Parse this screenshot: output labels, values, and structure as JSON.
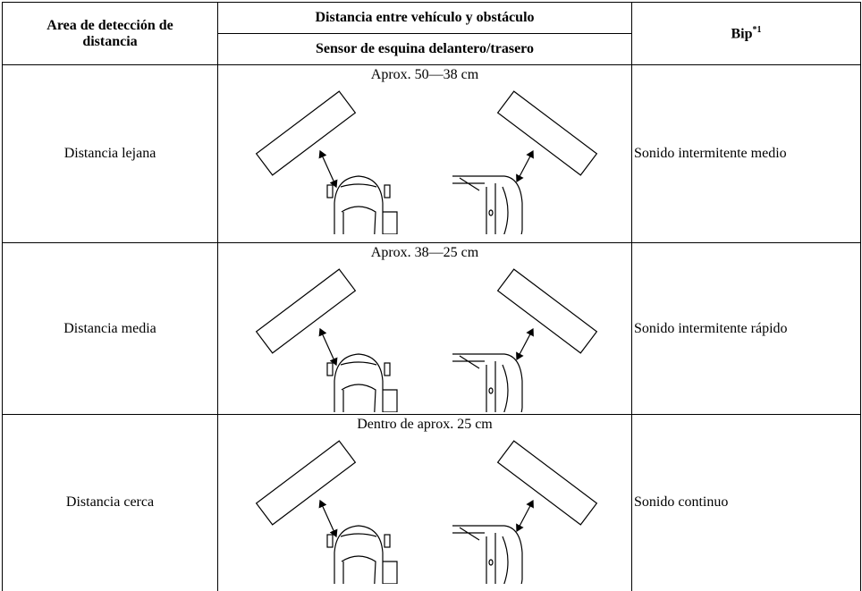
{
  "header": {
    "area_lines": [
      "Area de detección de",
      "distancia"
    ],
    "distance": "Distancia entre vehículo y obstáculo",
    "sensor": "Sensor de esquina delantero/trasero",
    "beep": "Bip",
    "beep_note": "*1"
  },
  "rows": [
    {
      "area": "Distancia lejana",
      "distance": "Aprox. 50—38 cm",
      "beep": "Sonido intermitente medio"
    },
    {
      "area": "Distancia media",
      "distance": "Aprox. 38—25 cm",
      "beep": "Sonido intermitente rápido"
    },
    {
      "area": "Distancia cerca",
      "distance": "Dentro de aprox. 25 cm",
      "beep": "Sonido continuo"
    }
  ]
}
